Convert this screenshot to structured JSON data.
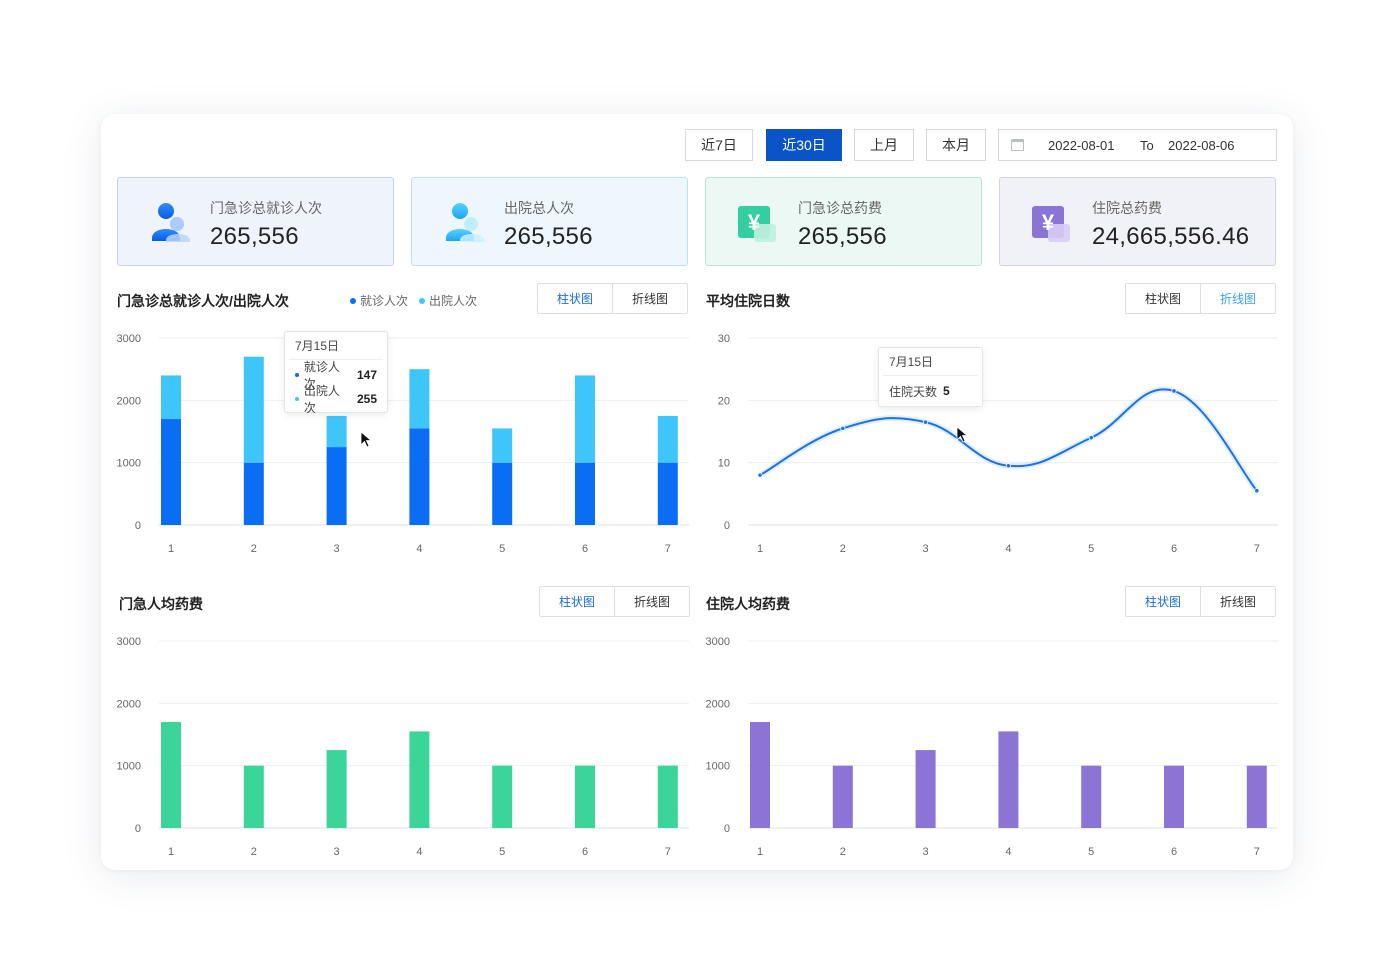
{
  "toolbar": {
    "buttons": [
      "近7日",
      "近30日",
      "上月",
      "本月"
    ],
    "active_index": 1,
    "date_start": "2022-08-01",
    "date_to": "To",
    "date_end": "2022-08-06"
  },
  "stats": [
    {
      "label": "门急诊总就诊人次",
      "value": "265,556",
      "icon": "person-icon"
    },
    {
      "label": "出院总人次",
      "value": "265,556",
      "icon": "person-icon"
    },
    {
      "label": "门急诊总药费",
      "value": "265,556",
      "icon": "yuan-icon"
    },
    {
      "label": "住院总药费",
      "value": "24,665,556.46",
      "icon": "yuan-icon"
    }
  ],
  "toggle": {
    "bar": "柱状图",
    "line": "折线图"
  },
  "colors": {
    "primary": "#0a54c7",
    "visits": "#0a6ef5",
    "discharge": "#3ec6fb",
    "line": "#1a73e8",
    "green": "#3bd499",
    "purple": "#8c74d6"
  },
  "panels": {
    "visits": {
      "title": "门急诊总就诊人次/出院人次",
      "legend": [
        "就诊人次",
        "出院人次"
      ],
      "tooltip": {
        "date": "7月15日",
        "rows": [
          {
            "name": "就诊人次",
            "value": "147"
          },
          {
            "name": "出院人次",
            "value": "255"
          }
        ]
      }
    },
    "stay": {
      "title": "平均住院日数",
      "tooltip": {
        "date": "7月15日",
        "name": "住院天数",
        "value": "5"
      }
    },
    "outpatient_cost": {
      "title": "门急人均药费"
    },
    "inpatient_cost": {
      "title": "住院人均药费"
    }
  },
  "chart_data": [
    {
      "type": "bar",
      "title": "门急诊总就诊人次/出院人次",
      "stacked": true,
      "categories": [
        "1",
        "2",
        "3",
        "4",
        "5",
        "6",
        "7"
      ],
      "series": [
        {
          "name": "就诊人次",
          "values": [
            1700,
            1000,
            1250,
            1550,
            1000,
            1000,
            1000
          ]
        },
        {
          "name": "出院人次",
          "values": [
            700,
            1700,
            500,
            950,
            550,
            1400,
            750
          ]
        }
      ],
      "yticks": [
        0,
        1000,
        2000,
        3000
      ],
      "ylim": [
        0,
        3000
      ]
    },
    {
      "type": "line",
      "title": "平均住院日数",
      "categories": [
        "1",
        "2",
        "3",
        "4",
        "5",
        "6",
        "7"
      ],
      "values": [
        8,
        15.5,
        16.5,
        9.5,
        14,
        21.5,
        5.5
      ],
      "yticks": [
        0,
        10,
        20,
        30
      ],
      "ylim": [
        0,
        30
      ]
    },
    {
      "type": "bar",
      "title": "门急人均药费",
      "categories": [
        "1",
        "2",
        "3",
        "4",
        "5",
        "6",
        "7"
      ],
      "values": [
        1700,
        1000,
        1250,
        1550,
        1000,
        1000,
        1000
      ],
      "yticks": [
        0,
        1000,
        2000,
        3000
      ],
      "ylim": [
        0,
        3000
      ]
    },
    {
      "type": "bar",
      "title": "住院人均药费",
      "categories": [
        "1",
        "2",
        "3",
        "4",
        "5",
        "6",
        "7"
      ],
      "values": [
        1700,
        1000,
        1250,
        1550,
        1000,
        1000,
        1000
      ],
      "yticks": [
        0,
        1000,
        2000,
        3000
      ],
      "ylim": [
        0,
        3000
      ]
    }
  ]
}
